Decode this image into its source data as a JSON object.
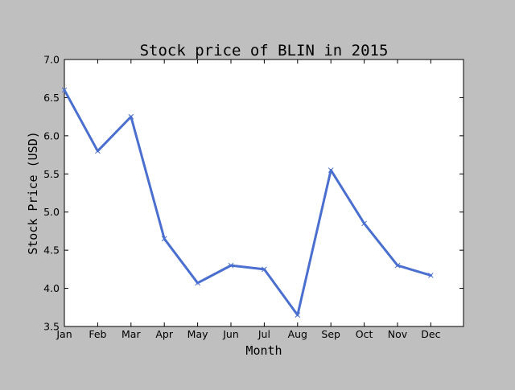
{
  "chart_data": {
    "type": "line",
    "title": "Stock price of BLIN in 2015",
    "xlabel": "Month",
    "ylabel": "Stock Price (USD)",
    "categories": [
      "Jan",
      "Feb",
      "Mar",
      "Apr",
      "May",
      "Jun",
      "Jul",
      "Aug",
      "Sep",
      "Oct",
      "Nov",
      "Dec"
    ],
    "series": [
      {
        "values": [
          6.6,
          5.8,
          6.25,
          4.65,
          4.07,
          4.3,
          4.25,
          3.65,
          5.55,
          4.85,
          4.3,
          4.17
        ]
      }
    ],
    "ylim": [
      3.5,
      7.0
    ],
    "yticks": [
      "3.5",
      "4.0",
      "4.5",
      "5.0",
      "5.5",
      "6.0",
      "6.5",
      "7.0"
    ],
    "grid": false,
    "line_color": "#4a6fcf",
    "marker": "x"
  }
}
